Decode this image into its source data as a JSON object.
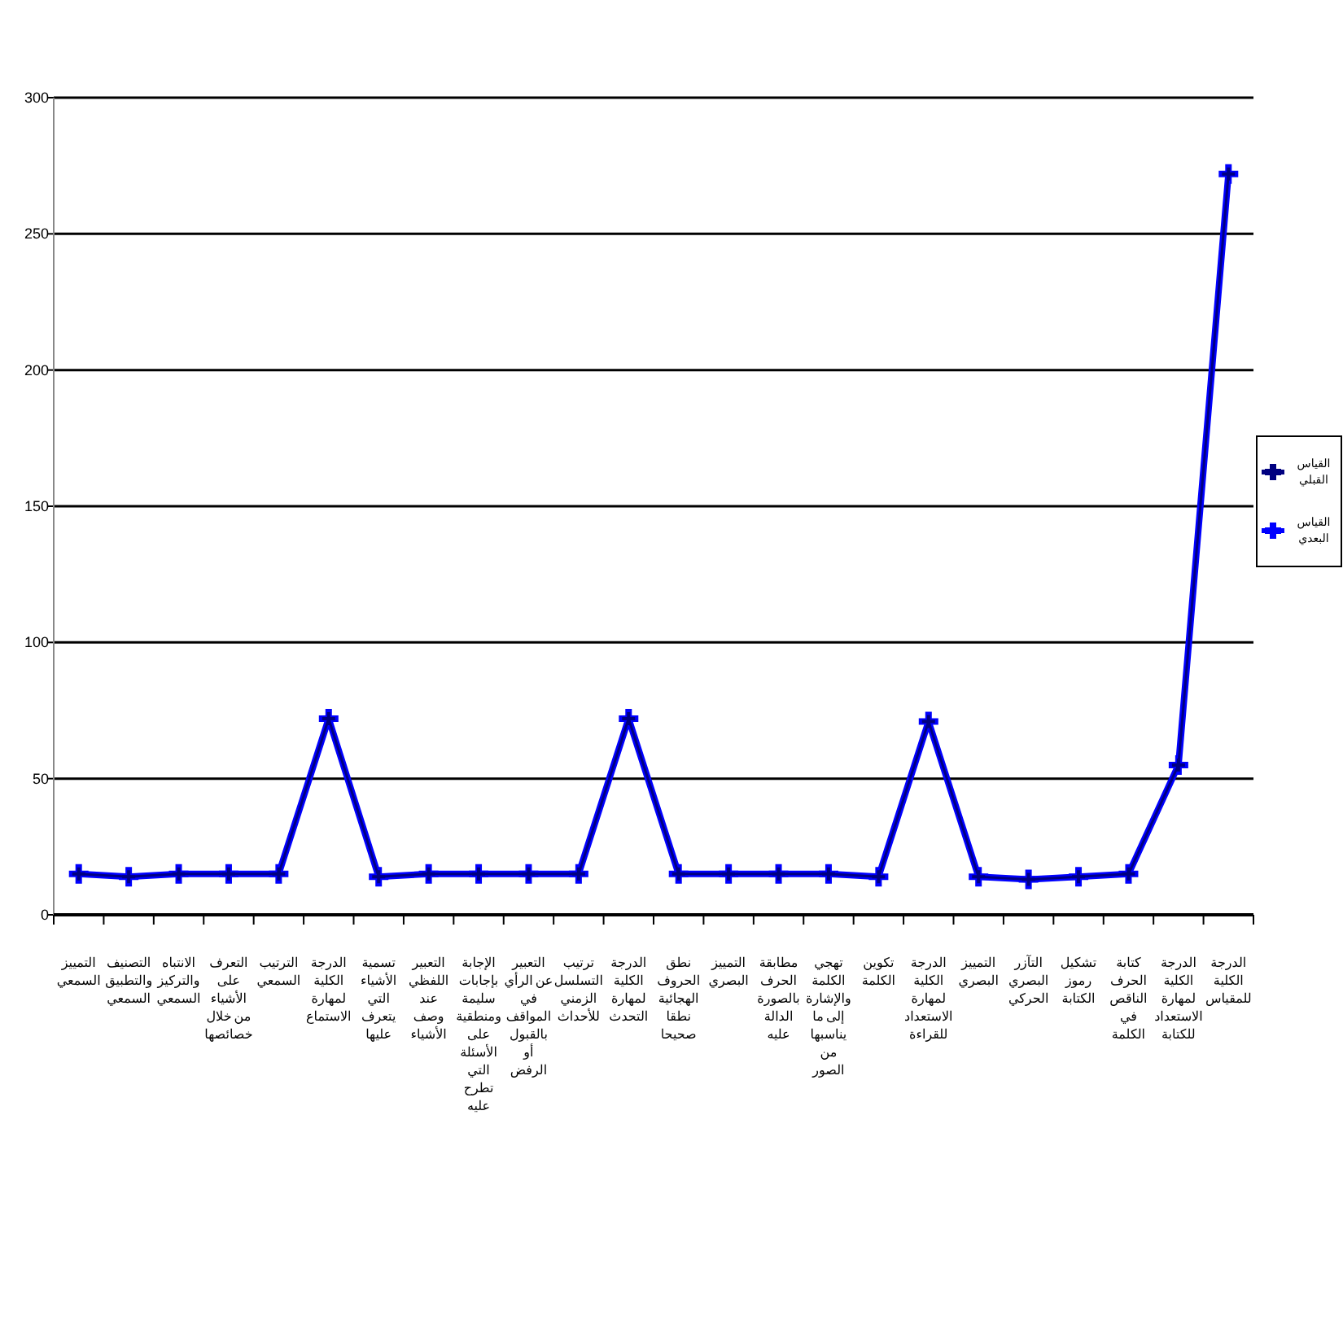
{
  "chart_data": {
    "type": "line",
    "categories": [
      "التمييز السمعي",
      "التصنيف والتطبيق السمعي",
      "الانتباه والتركيز السمعي",
      "التعرف على الأشياء من خلال خصائصها",
      "الترتيب السمعي",
      "الدرجة الكلية لمهارة الاستماع",
      "تسمية الأشياء التي يتعرف عليها",
      "التعبير اللفظي عند وصف الأشياء",
      "الإجابة بإجابات سليمة ومنطقية على الأسئلة التي تطرح عليه",
      "التعبير عن الرأي في المواقف بالقبول أو الرفض",
      "ترتيب التسلسل الزمني للأحداث",
      "الدرجة الكلية لمهارة التحدث",
      "نطق الحروف الهجائية نطقا صحيحا",
      "التمييز البصري",
      "مطابقة الحرف بالصورة الدالة عليه",
      "تهجي الكلمة والإشارة إلى ما يناسبها من الصور",
      "تكوين الكلمة",
      "الدرجة الكلية لمهارة الاستعداد للقراءة",
      "التمييز البصري",
      "التآزر البصري الحركي",
      "تشكيل رموز الكتابة",
      "كتابة الحرف الناقص في الكلمة",
      "الدرجة الكلية لمهارة الاستعداد للكتابة",
      "الدرجة الكلية للمقياس"
    ],
    "series": [
      {
        "name": "القياس القبلي",
        "color": "#000080",
        "values": [
          15,
          14,
          15,
          15,
          15,
          72,
          14,
          15,
          15,
          15,
          15,
          72,
          15,
          15,
          15,
          15,
          14,
          71,
          14,
          13,
          14,
          15,
          55,
          272
        ]
      },
      {
        "name": "القياس البعدي",
        "color": "#0000ff",
        "values": [
          15,
          14,
          15,
          15,
          15,
          72,
          14,
          15,
          15,
          15,
          15,
          72,
          15,
          15,
          15,
          15,
          14,
          71,
          14,
          13,
          14,
          15,
          55,
          272
        ]
      }
    ],
    "ylim": [
      0,
      300
    ],
    "yticks": [
      0,
      50,
      100,
      150,
      200,
      250,
      300
    ],
    "grid": "y",
    "legend": "right",
    "marker": "cross",
    "line_style": "solid"
  }
}
